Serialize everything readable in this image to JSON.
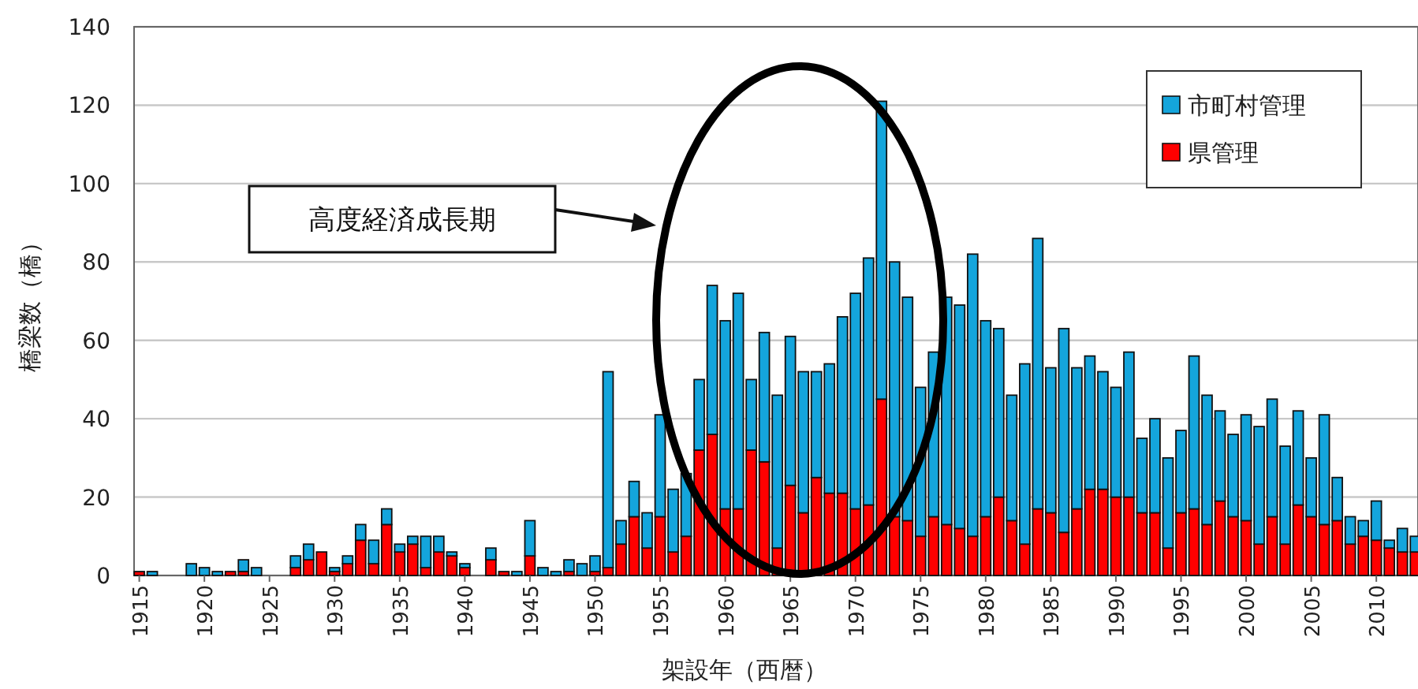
{
  "chart_data": {
    "type": "bar",
    "stacked": true,
    "x": [
      1915,
      1916,
      1917,
      1918,
      1919,
      1920,
      1921,
      1922,
      1923,
      1924,
      1925,
      1926,
      1927,
      1928,
      1929,
      1930,
      1931,
      1932,
      1933,
      1934,
      1935,
      1936,
      1937,
      1938,
      1939,
      1940,
      1941,
      1942,
      1943,
      1944,
      1945,
      1946,
      1947,
      1948,
      1949,
      1950,
      1951,
      1952,
      1953,
      1954,
      1955,
      1956,
      1957,
      1958,
      1959,
      1960,
      1961,
      1962,
      1963,
      1964,
      1965,
      1966,
      1967,
      1968,
      1969,
      1970,
      1971,
      1972,
      1973,
      1974,
      1975,
      1976,
      1977,
      1978,
      1979,
      1980,
      1981,
      1982,
      1983,
      1984,
      1985,
      1986,
      1987,
      1988,
      1989,
      1990,
      1991,
      1992,
      1993,
      1994,
      1995,
      1996,
      1997,
      1998,
      1999,
      2000,
      2001,
      2002,
      2003,
      2004,
      2005,
      2006,
      2007,
      2008,
      2009,
      2010,
      2011,
      2012,
      2013
    ],
    "series": [
      {
        "name": "県管理",
        "color": "#ff0000",
        "values": [
          1,
          0,
          0,
          0,
          0,
          0,
          0,
          1,
          1,
          0,
          0,
          0,
          2,
          4,
          6,
          1,
          3,
          9,
          3,
          13,
          6,
          8,
          2,
          6,
          5,
          2,
          0,
          4,
          1,
          0,
          5,
          0,
          0,
          1,
          0,
          1,
          2,
          8,
          15,
          7,
          15,
          6,
          10,
          32,
          36,
          17,
          17,
          32,
          29,
          7,
          23,
          16,
          25,
          21,
          21,
          17,
          18,
          45,
          15,
          14,
          10,
          15,
          13,
          12,
          10,
          15,
          20,
          14,
          8,
          17,
          16,
          11,
          17,
          22,
          22,
          20,
          20,
          16,
          16,
          7,
          16,
          17,
          13,
          19,
          15,
          14,
          8,
          15,
          8,
          18,
          15,
          13,
          14,
          8,
          10,
          9,
          7,
          6,
          6
        ]
      },
      {
        "name": "市町村管理",
        "color": "#14a5dc",
        "values": [
          0,
          1,
          0,
          0,
          3,
          2,
          1,
          0,
          3,
          2,
          0,
          0,
          3,
          4,
          0,
          1,
          2,
          4,
          6,
          4,
          2,
          2,
          8,
          4,
          1,
          1,
          0,
          3,
          0,
          1,
          9,
          2,
          1,
          3,
          3,
          4,
          50,
          6,
          9,
          9,
          26,
          16,
          16,
          18,
          38,
          48,
          55,
          18,
          33,
          39,
          38,
          36,
          27,
          33,
          45,
          55,
          63,
          76,
          65,
          57,
          38,
          42,
          58,
          57,
          72,
          50,
          43,
          32,
          46,
          69,
          37,
          52,
          36,
          34,
          30,
          28,
          37,
          19,
          24,
          23,
          21,
          39,
          33,
          23,
          21,
          27,
          30,
          30,
          25,
          24,
          15,
          28,
          11,
          7,
          4,
          10,
          2,
          6,
          4
        ]
      }
    ],
    "xlim": [
      1914.6,
      2013.2
    ],
    "xticks": [
      1915,
      1920,
      1925,
      1930,
      1935,
      1940,
      1945,
      1950,
      1955,
      1960,
      1965,
      1970,
      1975,
      1980,
      1985,
      1990,
      1995,
      2000,
      2005,
      2010
    ],
    "ylim": [
      0,
      140
    ],
    "yticks": [
      0,
      20,
      40,
      60,
      80,
      100,
      120,
      140
    ],
    "grid": "y",
    "legend": "top right",
    "xlabel": "架設年（西暦）",
    "ylabel": "橋梁数（橋）",
    "annotations": [
      "高度経済成長期"
    ]
  }
}
